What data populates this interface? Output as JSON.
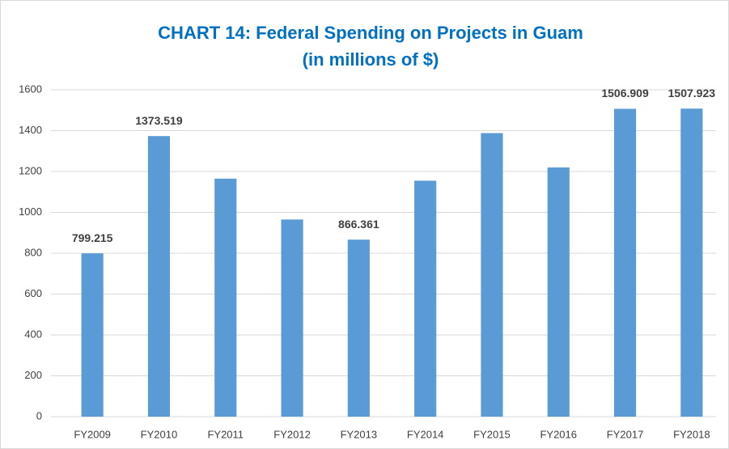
{
  "chart_data": {
    "type": "bar",
    "title": "CHART 14: Federal Spending on Projects in Guam",
    "subtitle": "(in millions of $)",
    "categories": [
      "FY2009",
      "FY2010",
      "FY2011",
      "FY2012",
      "FY2013",
      "FY2014",
      "FY2015",
      "FY2016",
      "FY2017",
      "FY2018"
    ],
    "values": [
      799.215,
      1373.519,
      1165,
      965,
      866.361,
      1155,
      1388,
      1220,
      1506.909,
      1507.923
    ],
    "value_labels": [
      "799.215",
      "1373.519",
      null,
      null,
      "866.361",
      null,
      null,
      null,
      "1506.909",
      "1507.923"
    ],
    "color": "#5b9bd5",
    "ylim": [
      0,
      1600
    ],
    "yticks": [
      0,
      200,
      400,
      600,
      800,
      1000,
      1200,
      1400,
      1600
    ],
    "grid": true
  }
}
